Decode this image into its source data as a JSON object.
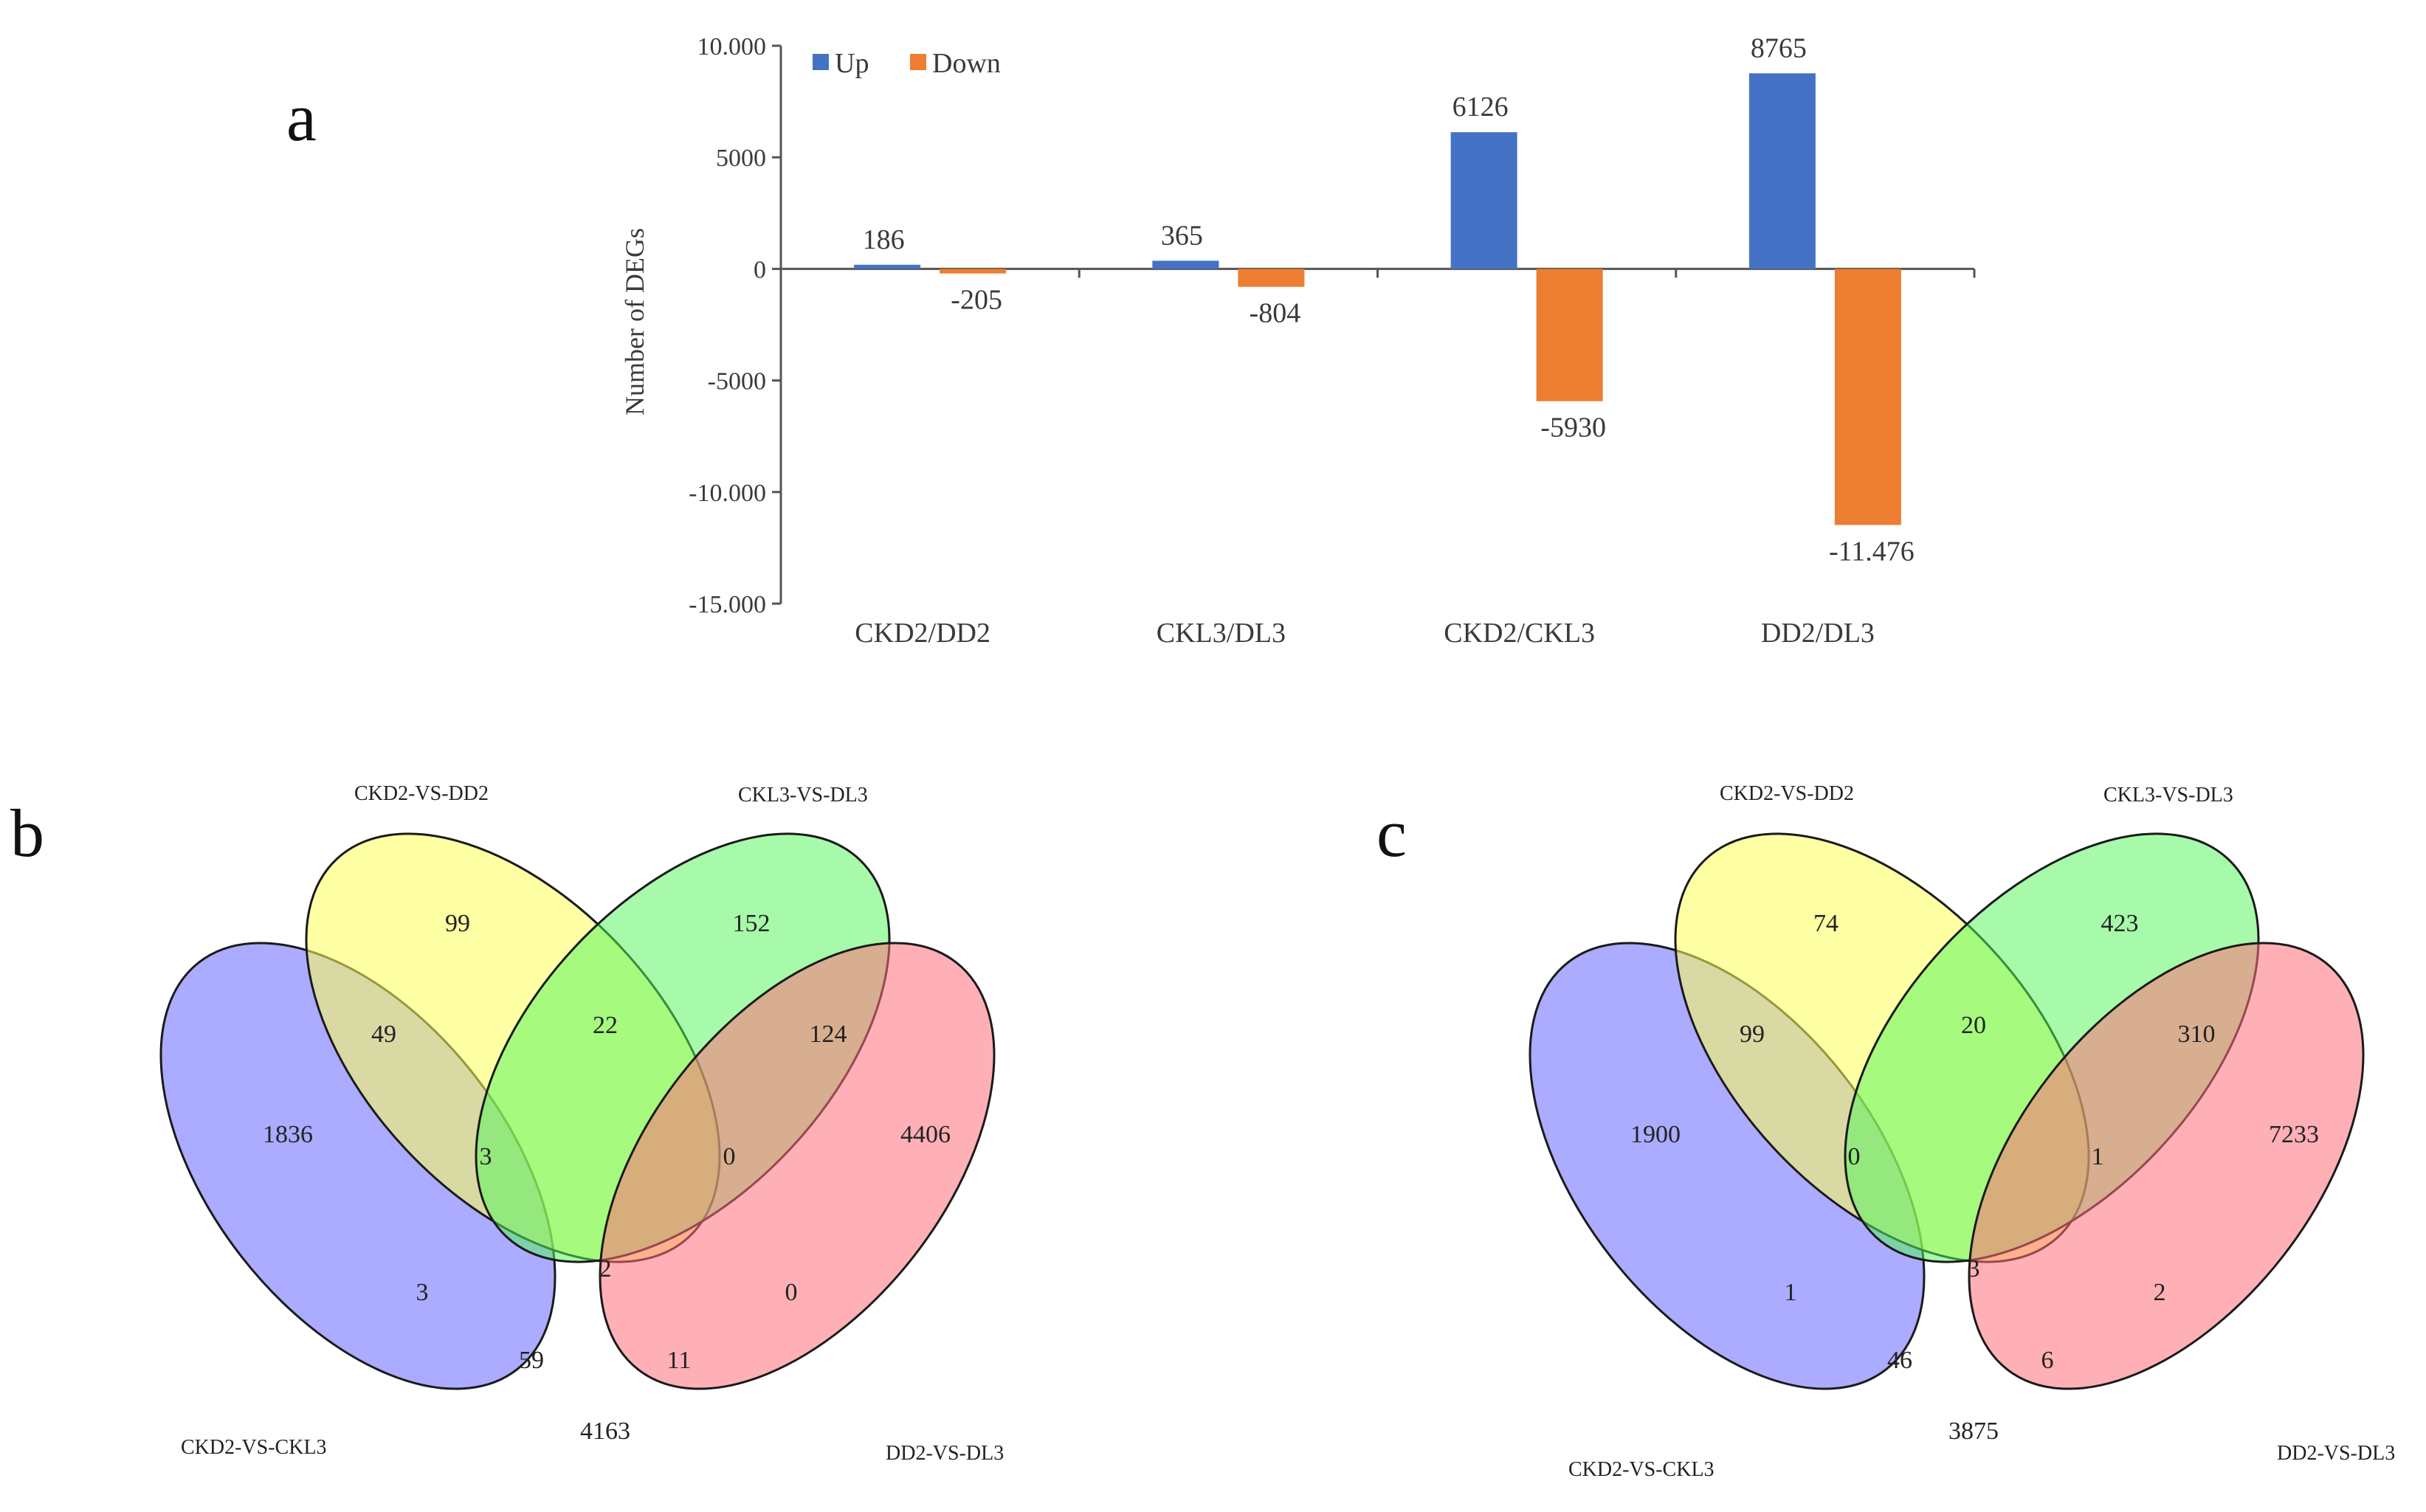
{
  "panels": {
    "a": "a",
    "b": "b",
    "c": "c"
  },
  "colors": {
    "up": "#4472c4",
    "down": "#ed7d31"
  },
  "chart_data": [
    {
      "type": "bar",
      "panel": "a",
      "ylabel": "Number of DEGs",
      "ylim": [
        -15000,
        10000
      ],
      "yticks": [
        10000,
        5000,
        0,
        -5000,
        -10000,
        -15000
      ],
      "ytick_labels": [
        "10.000",
        "5000",
        "0",
        "-5000",
        "-10.000",
        "-15.000"
      ],
      "categories": [
        "CKD2/DD2",
        "CKL3/DL3",
        "CKD2/CKL3",
        "DD2/DL3"
      ],
      "legend_position": "top-left",
      "series": [
        {
          "name": "Up",
          "color": "#4472c4",
          "values": [
            186,
            365,
            6126,
            8765
          ],
          "labels": [
            "186",
            "365",
            "6126",
            "8765"
          ]
        },
        {
          "name": "Down",
          "color": "#ed7d31",
          "values": [
            -205,
            -804,
            -5930,
            -11476
          ],
          "labels": [
            "-205",
            "-804",
            "-5930",
            "-11.476"
          ]
        }
      ]
    },
    {
      "type": "venn",
      "panel": "b",
      "sets": [
        "CKD2-VS-CKL3",
        "CKD2-VS-DD2",
        "CKL3-VS-DL3",
        "DD2-VS-DL3"
      ],
      "regions": {
        "A": "1836",
        "B": "99",
        "C": "152",
        "D": "4406",
        "AB": "49",
        "BC": "22",
        "CD": "124",
        "ABC": "3",
        "BCD": "0",
        "ABCD": "2",
        "AC": "3",
        "BD": "0",
        "ACD": "59",
        "ABD": "11",
        "AD": "4163"
      }
    },
    {
      "type": "venn",
      "panel": "c",
      "sets": [
        "CKD2-VS-CKL3",
        "CKD2-VS-DD2",
        "CKL3-VS-DL3",
        "DD2-VS-DL3"
      ],
      "regions": {
        "A": "1900",
        "B": "74",
        "C": "423",
        "D": "7233",
        "AB": "99",
        "BC": "20",
        "CD": "310",
        "ABC": "0",
        "BCD": "1",
        "ABCD": "3",
        "AC": "1",
        "BD": "2",
        "ACD": "46",
        "ABD": "6",
        "AD": "3875"
      }
    }
  ]
}
